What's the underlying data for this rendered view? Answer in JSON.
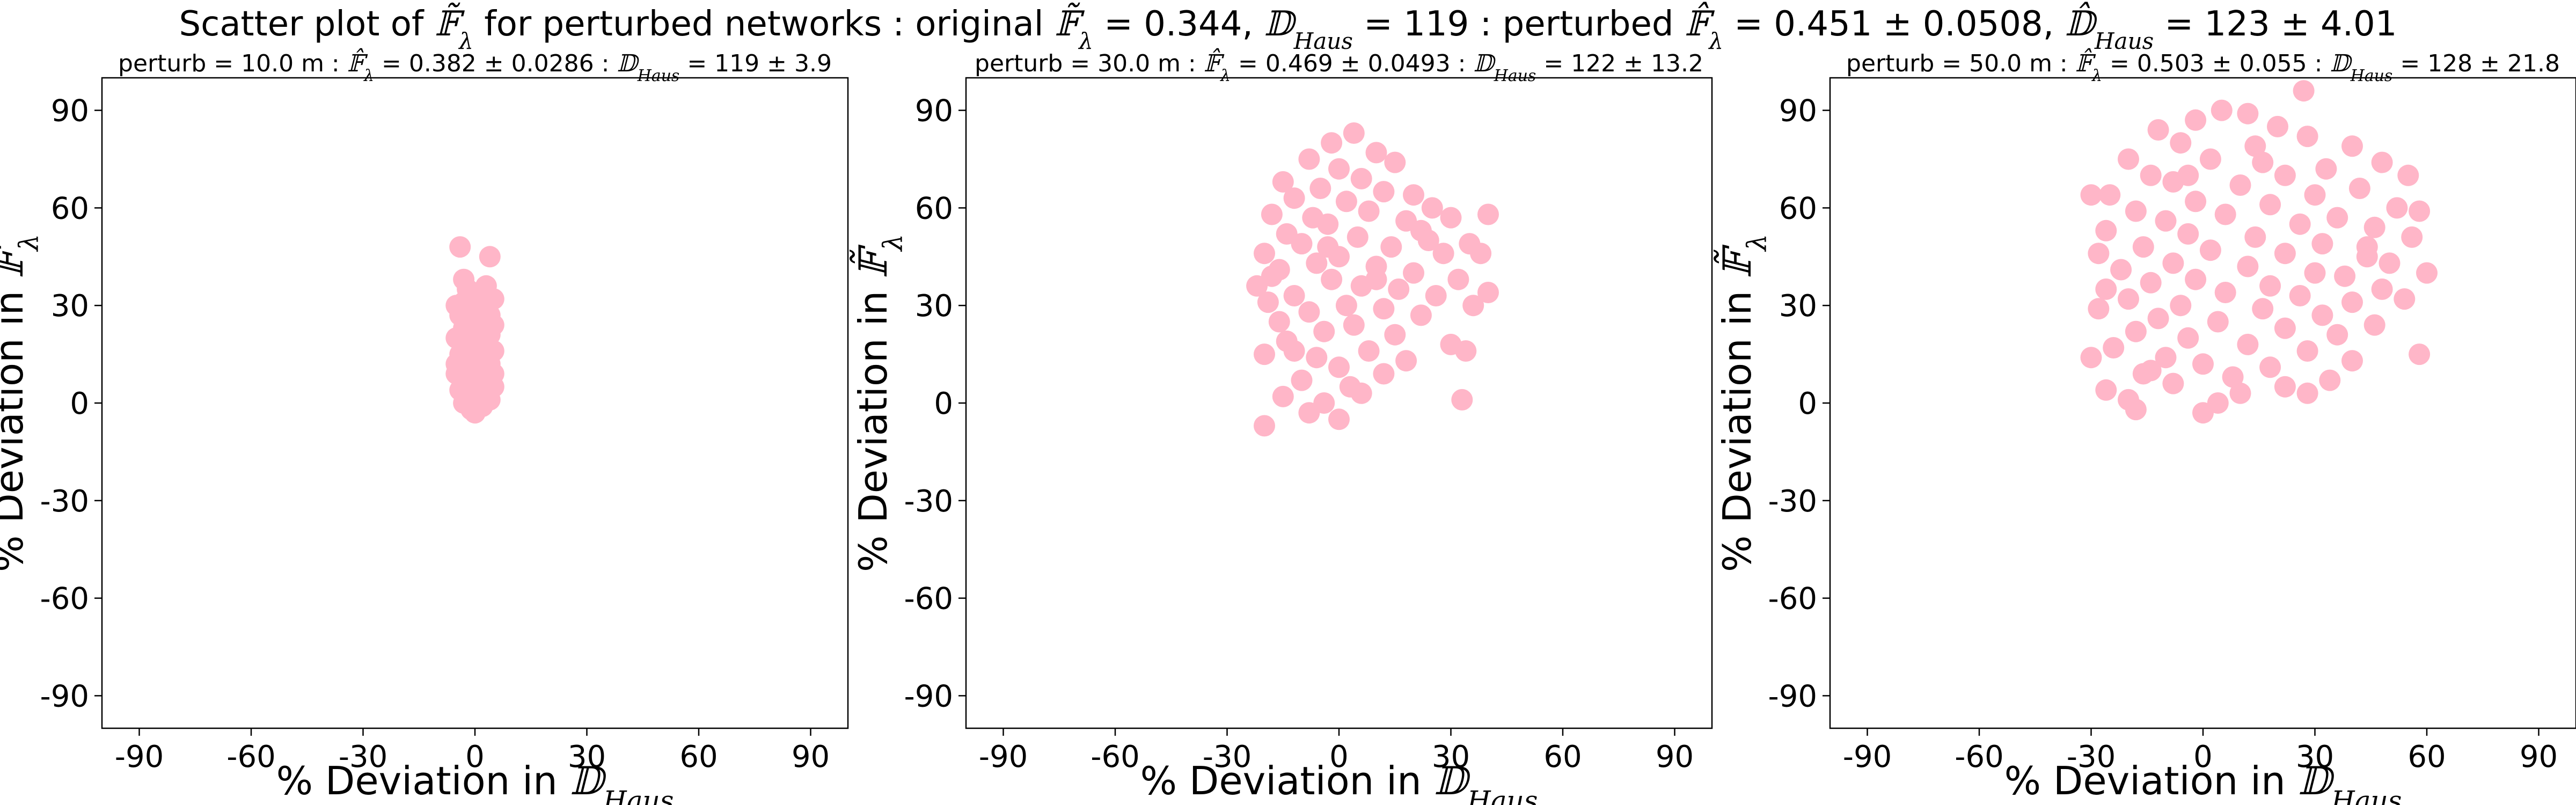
{
  "figure": {
    "title_parts": {
      "prefix": "Scatter plot of ",
      "metric_symbol": "𝔽̃",
      "metric_sub": "λ",
      "mid1": " for perturbed networks  :  original ",
      "orig_metric_eq": " = 0.344, ",
      "haus_symbol": "𝔻",
      "haus_sub": "Haus",
      "orig_haus_eq": " = 119  :  perturbed ",
      "pert_metric_symbol": "𝔽̂",
      "pert_metric_eq": " = 0.451 ± 0.0508, ",
      "pert_haus_symbol": "𝔻̂",
      "pert_haus_eq": " = 123 ± 4.01"
    }
  },
  "chart_data": [
    {
      "type": "scatter",
      "subtitle_prefix": "perturb = 10.0 m : ",
      "subtitle_metric": " = 0.382 ± 0.0286 : ",
      "subtitle_haus": " = 119 ± 3.9",
      "xlabel_text": "% Deviation in ",
      "ylabel_text": "% Deviation in ",
      "xlim": [
        -100,
        100
      ],
      "ylim": [
        -100,
        100
      ],
      "xticks": [
        "-90",
        "-60",
        "-30",
        "0",
        "30",
        "60",
        "90"
      ],
      "yticks": [
        "90",
        "60",
        "30",
        "0",
        "-30",
        "-60",
        "-90"
      ],
      "color": "#ffb6c8",
      "points": [
        [
          -4,
          48
        ],
        [
          4,
          45
        ],
        [
          -3,
          38
        ],
        [
          3,
          36
        ],
        [
          -2,
          35
        ],
        [
          1,
          34
        ],
        [
          5,
          32
        ],
        [
          -5,
          30
        ],
        [
          0,
          30
        ],
        [
          3,
          28
        ],
        [
          -4,
          27
        ],
        [
          2,
          26
        ],
        [
          -1,
          25
        ],
        [
          5,
          24
        ],
        [
          -3,
          23
        ],
        [
          1,
          22
        ],
        [
          4,
          21
        ],
        [
          -5,
          20
        ],
        [
          0,
          19
        ],
        [
          -2,
          18
        ],
        [
          3,
          17
        ],
        [
          5,
          16
        ],
        [
          -4,
          15
        ],
        [
          1,
          14
        ],
        [
          -1,
          13
        ],
        [
          4,
          12
        ],
        [
          -3,
          11
        ],
        [
          2,
          10
        ],
        [
          -5,
          9
        ],
        [
          0,
          8
        ],
        [
          3,
          7
        ],
        [
          -2,
          6
        ],
        [
          5,
          5
        ],
        [
          -4,
          4
        ],
        [
          1,
          3
        ],
        [
          -1,
          2
        ],
        [
          4,
          1
        ],
        [
          -3,
          0
        ],
        [
          2,
          -1
        ],
        [
          -1,
          -2
        ],
        [
          0,
          -3
        ],
        [
          3,
          2
        ],
        [
          -2,
          24
        ],
        [
          2,
          33
        ],
        [
          -3,
          31
        ],
        [
          4,
          27
        ],
        [
          0,
          16
        ],
        [
          -5,
          12
        ],
        [
          5,
          9
        ],
        [
          -1,
          6
        ]
      ]
    },
    {
      "type": "scatter",
      "subtitle_prefix": "perturb = 30.0 m : ",
      "subtitle_metric": " = 0.469 ± 0.0493 : ",
      "subtitle_haus": " = 122 ± 13.2",
      "xlabel_text": "% Deviation in ",
      "ylabel_text": "% Deviation in ",
      "xlim": [
        -100,
        100
      ],
      "ylim": [
        -100,
        100
      ],
      "xticks": [
        "-90",
        "-60",
        "-30",
        "0",
        "30",
        "60",
        "90"
      ],
      "yticks": [
        "90",
        "60",
        "30",
        "0",
        "-30",
        "-60",
        "-90"
      ],
      "color": "#ffb6c8",
      "points": [
        [
          4,
          83
        ],
        [
          -2,
          80
        ],
        [
          10,
          77
        ],
        [
          -8,
          75
        ],
        [
          15,
          74
        ],
        [
          0,
          72
        ],
        [
          -15,
          68
        ],
        [
          6,
          69
        ],
        [
          -5,
          66
        ],
        [
          20,
          64
        ],
        [
          12,
          65
        ],
        [
          -12,
          63
        ],
        [
          25,
          60
        ],
        [
          2,
          62
        ],
        [
          -18,
          58
        ],
        [
          30,
          57
        ],
        [
          8,
          59
        ],
        [
          -7,
          57
        ],
        [
          40,
          58
        ],
        [
          18,
          56
        ],
        [
          -3,
          55
        ],
        [
          22,
          53
        ],
        [
          -14,
          52
        ],
        [
          5,
          51
        ],
        [
          35,
          49
        ],
        [
          -10,
          49
        ],
        [
          14,
          48
        ],
        [
          -20,
          46
        ],
        [
          28,
          46
        ],
        [
          0,
          45
        ],
        [
          38,
          46
        ],
        [
          -6,
          43
        ],
        [
          10,
          42
        ],
        [
          -16,
          41
        ],
        [
          20,
          40
        ],
        [
          32,
          38
        ],
        [
          -2,
          38
        ],
        [
          -22,
          36
        ],
        [
          6,
          36
        ],
        [
          16,
          35
        ],
        [
          -12,
          33
        ],
        [
          26,
          33
        ],
        [
          40,
          34
        ],
        [
          -19,
          31
        ],
        [
          2,
          30
        ],
        [
          12,
          29
        ],
        [
          -8,
          28
        ],
        [
          36,
          30
        ],
        [
          22,
          27
        ],
        [
          -16,
          25
        ],
        [
          4,
          24
        ],
        [
          -4,
          22
        ],
        [
          15,
          21
        ],
        [
          30,
          18
        ],
        [
          34,
          16
        ],
        [
          -14,
          19
        ],
        [
          8,
          16
        ],
        [
          -6,
          14
        ],
        [
          18,
          13
        ],
        [
          -20,
          15
        ],
        [
          0,
          11
        ],
        [
          12,
          9
        ],
        [
          -10,
          7
        ],
        [
          3,
          5
        ],
        [
          -15,
          2
        ],
        [
          6,
          3
        ],
        [
          -4,
          0
        ],
        [
          33,
          1
        ],
        [
          -8,
          -3
        ],
        [
          -20,
          -7
        ],
        [
          0,
          -5
        ],
        [
          -12,
          16
        ],
        [
          10,
          38
        ],
        [
          -3,
          48
        ],
        [
          24,
          50
        ],
        [
          -18,
          39
        ]
      ]
    },
    {
      "type": "scatter",
      "subtitle_prefix": "perturb = 50.0 m : ",
      "subtitle_metric": " = 0.503 ± 0.055 : ",
      "subtitle_haus": " = 128 ± 21.8",
      "xlabel_text": "% Deviation in ",
      "ylabel_text": "% Deviation in ",
      "xlim": [
        -100,
        100
      ],
      "ylim": [
        -100,
        100
      ],
      "xticks": [
        "-90",
        "-60",
        "-30",
        "0",
        "30",
        "60",
        "90"
      ],
      "yticks": [
        "90",
        "60",
        "30",
        "0",
        "-30",
        "-60",
        "-90"
      ],
      "color": "#ffb6c8",
      "points": [
        [
          27,
          96
        ],
        [
          5,
          90
        ],
        [
          12,
          89
        ],
        [
          -2,
          87
        ],
        [
          20,
          85
        ],
        [
          -12,
          84
        ],
        [
          28,
          82
        ],
        [
          -6,
          80
        ],
        [
          40,
          79
        ],
        [
          14,
          79
        ],
        [
          -20,
          75
        ],
        [
          48,
          74
        ],
        [
          2,
          75
        ],
        [
          33,
          72
        ],
        [
          -14,
          70
        ],
        [
          22,
          70
        ],
        [
          55,
          70
        ],
        [
          -8,
          68
        ],
        [
          10,
          67
        ],
        [
          42,
          66
        ],
        [
          -25,
          64
        ],
        [
          -30,
          64
        ],
        [
          30,
          64
        ],
        [
          -2,
          62
        ],
        [
          18,
          61
        ],
        [
          52,
          60
        ],
        [
          58,
          59
        ],
        [
          -18,
          59
        ],
        [
          6,
          58
        ],
        [
          36,
          57
        ],
        [
          -10,
          56
        ],
        [
          26,
          55
        ],
        [
          46,
          54
        ],
        [
          -26,
          53
        ],
        [
          -4,
          52
        ],
        [
          14,
          51
        ],
        [
          56,
          51
        ],
        [
          32,
          49
        ],
        [
          -16,
          48
        ],
        [
          2,
          47
        ],
        [
          22,
          46
        ],
        [
          -28,
          46
        ],
        [
          44,
          45
        ],
        [
          50,
          43
        ],
        [
          -8,
          43
        ],
        [
          12,
          42
        ],
        [
          -22,
          41
        ],
        [
          30,
          40
        ],
        [
          60,
          40
        ],
        [
          38,
          39
        ],
        [
          -2,
          38
        ],
        [
          -14,
          37
        ],
        [
          18,
          36
        ],
        [
          48,
          35
        ],
        [
          -26,
          35
        ],
        [
          6,
          34
        ],
        [
          26,
          33
        ],
        [
          -20,
          32
        ],
        [
          54,
          32
        ],
        [
          40,
          31
        ],
        [
          -6,
          30
        ],
        [
          16,
          29
        ],
        [
          -28,
          29
        ],
        [
          32,
          27
        ],
        [
          -12,
          26
        ],
        [
          4,
          25
        ],
        [
          46,
          24
        ],
        [
          22,
          23
        ],
        [
          -18,
          22
        ],
        [
          36,
          21
        ],
        [
          -4,
          20
        ],
        [
          58,
          15
        ],
        [
          12,
          18
        ],
        [
          -24,
          17
        ],
        [
          28,
          16
        ],
        [
          -10,
          14
        ],
        [
          40,
          13
        ],
        [
          0,
          12
        ],
        [
          18,
          11
        ],
        [
          -30,
          14
        ],
        [
          -16,
          9
        ],
        [
          8,
          8
        ],
        [
          34,
          7
        ],
        [
          -8,
          6
        ],
        [
          22,
          5
        ],
        [
          -26,
          4
        ],
        [
          10,
          3
        ],
        [
          28,
          3
        ],
        [
          -20,
          1
        ],
        [
          4,
          0
        ],
        [
          -18,
          -2
        ],
        [
          0,
          -3
        ],
        [
          -14,
          10
        ],
        [
          44,
          48
        ],
        [
          -4,
          70
        ],
        [
          16,
          74
        ]
      ]
    }
  ]
}
